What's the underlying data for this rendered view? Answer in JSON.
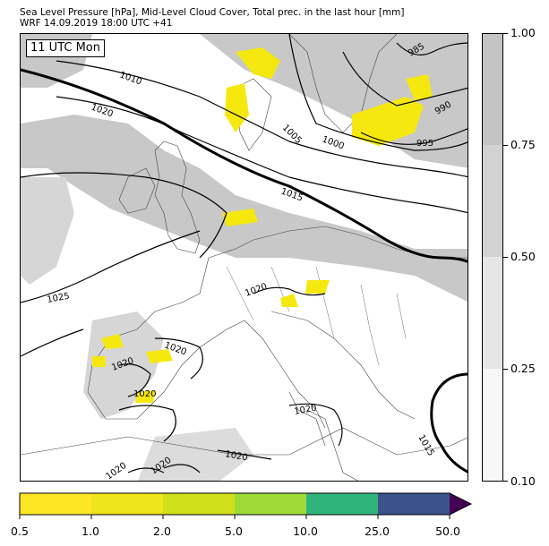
{
  "header": {
    "title_line1": "Sea Level Pressure [hPa], Mid-Level Cloud Cover, Total prec. in the last hour [mm]",
    "title_line2": "WRF 14.09.2019 18:00 UTC +41"
  },
  "map": {
    "time_label": "11 UTC Mon",
    "isobar_labels": [
      "1010",
      "1020",
      "1005",
      "1000",
      "985",
      "990",
      "995",
      "1015",
      "1025",
      "1020",
      "1020",
      "1020",
      "1020",
      "1020",
      "1020",
      "1020",
      "1020",
      "1015"
    ]
  },
  "cloud_cover_bar": {
    "levels": [
      "0.10",
      "0.25",
      "0.50",
      "0.75",
      "1.00"
    ],
    "colors": [
      "#f7f7f7",
      "#e6e6e6",
      "#d2d2d2",
      "#c4c4c4"
    ]
  },
  "precip_bar": {
    "levels": [
      "0.5",
      "1.0",
      "2.0",
      "5.0",
      "10.0",
      "25.0",
      "50.0"
    ],
    "colors": [
      "#fde725",
      "#eee51b",
      "#d0e11c",
      "#a0da39",
      "#4ac16d",
      "#2fb47c",
      "#3b528b",
      "#440154"
    ]
  },
  "colors": {
    "land_outline": "#444444",
    "isobar": "#000000",
    "cloud_dark": "#c4c4c4",
    "cloud_light": "#e0e0e0",
    "precip": "#f5e80f"
  }
}
